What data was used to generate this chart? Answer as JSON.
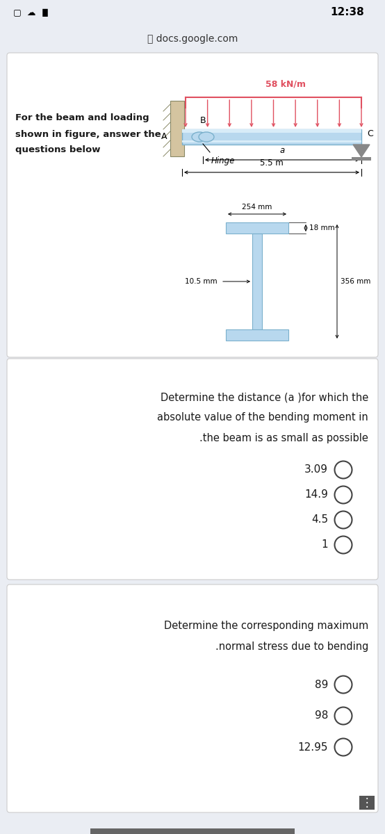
{
  "bg_color": "#eaedf3",
  "card_color": "#ffffff",
  "status_bar_text": "12:38",
  "url_text": "docs.google.com",
  "problem_text_line1": "For the beam and loading",
  "problem_text_line2": "shown in figure, answer the",
  "problem_text_line3": "questions below",
  "load_label": "58 kN/m",
  "hinge_label": "Hinge",
  "dim_a_label": "a",
  "dim_55_label": "5.5 m",
  "section_254": "254 mm",
  "section_18": "18 mm",
  "section_105": "10.5 mm",
  "section_356": "356 mm",
  "q1_title_line1": "Determine the distance (a )for which the",
  "q1_title_line2": "absolute value of the bending moment in",
  "q1_title_line3": ".the beam is as small as possible",
  "q1_options": [
    "3.09",
    "14.9",
    "4.5",
    "1"
  ],
  "q2_title_line1": "Determine the corresponding maximum",
  "q2_title_line2": ".normal stress due to bending",
  "q2_options": [
    "89",
    "98",
    "12.95"
  ],
  "label_A": "A",
  "label_B": "B",
  "label_C": "C",
  "red_color": "#e05060",
  "beam_color": "#b8d8ee",
  "beam_edge": "#7ab0cc",
  "text_color": "#1a1a1a",
  "wall_color": "#c8b89a",
  "support_color": "#888888",
  "circle_edge": "#444444"
}
